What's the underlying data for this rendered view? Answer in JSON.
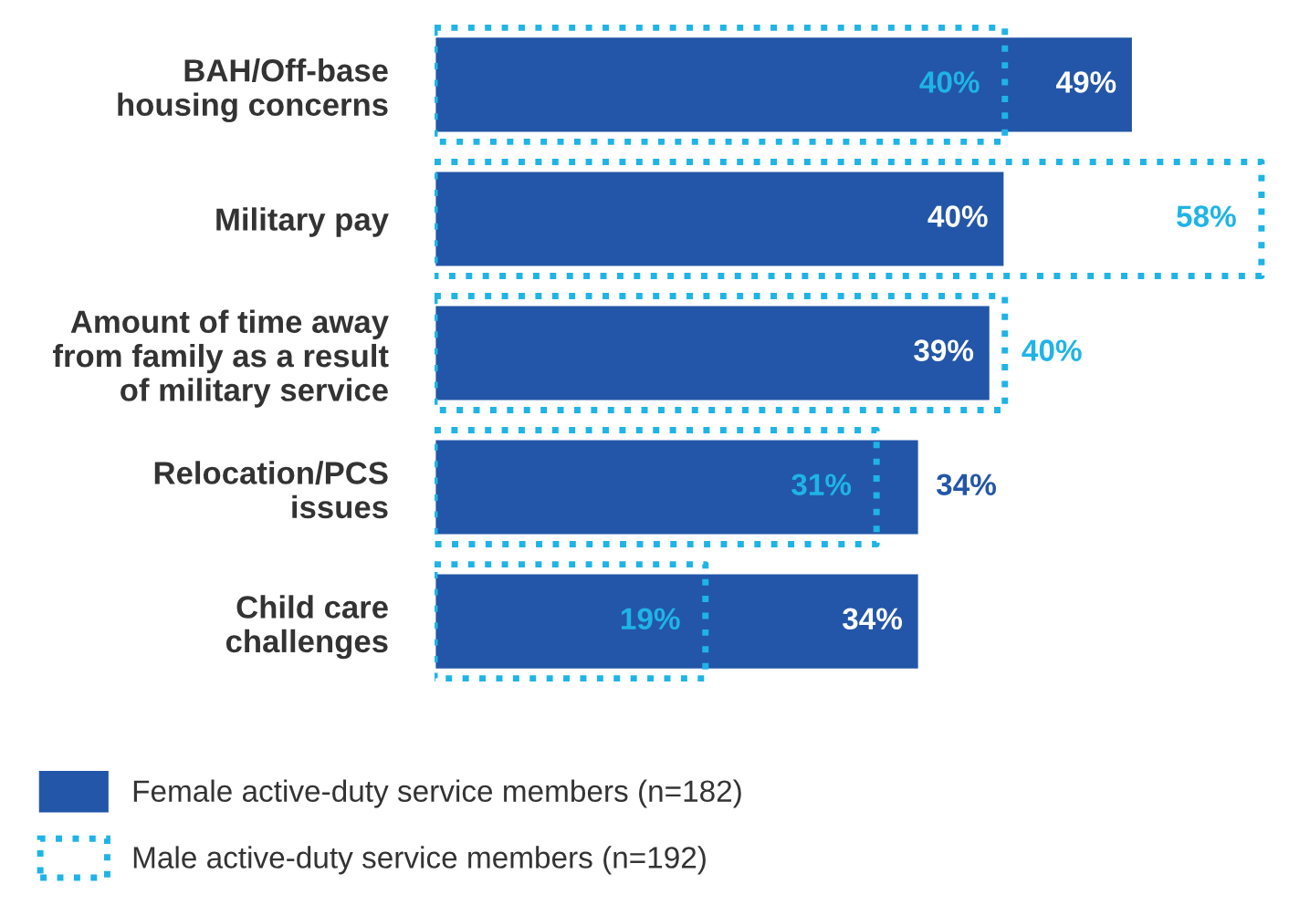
{
  "chart_data": {
    "type": "bar",
    "orientation": "horizontal",
    "categories": [
      "BAH/Off-base\nhousing concerns",
      "Military pay",
      "Amount of time away\nfrom family as a result\nof military service",
      "Relocation/PCS\nissues",
      "Child care\nchallenges"
    ],
    "series": [
      {
        "name": "Female active-duty service members (n=182)",
        "color": "#2356a8",
        "values": [
          49,
          40,
          39,
          34,
          34
        ],
        "value_labels": [
          "49%",
          "40%",
          "39%",
          "34%",
          "34%"
        ],
        "line_style": "solid"
      },
      {
        "name": "Male active-duty service members (n=192)",
        "color": "#1fb4e6",
        "values": [
          40,
          58,
          40,
          31,
          19
        ],
        "value_labels": [
          "40%",
          "58%",
          "40%",
          "31%",
          "19%"
        ],
        "line_style": "dotted"
      }
    ],
    "legend": "bottom left",
    "grid": false
  }
}
